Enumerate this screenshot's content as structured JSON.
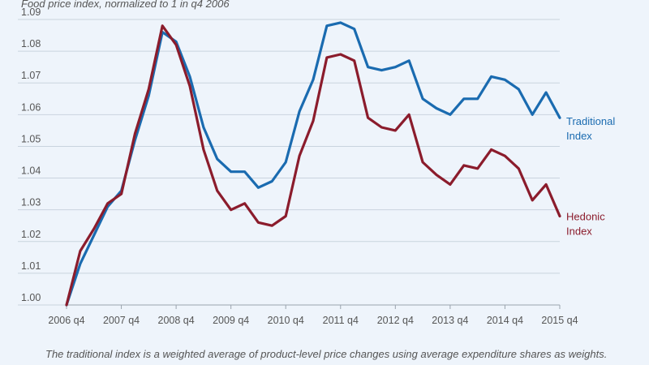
{
  "chart_data": {
    "type": "line",
    "title": "",
    "ylabel": "Food price index, normalized to 1 in q4 2006",
    "xlabel": "",
    "note": "The traditional index is a weighted average of product-level price changes using average expenditure shares as weights.",
    "ylim": [
      0.995,
      1.095
    ],
    "y_ticks": [
      "1.00",
      "1.01",
      "1.02",
      "1.03",
      "1.04",
      "1.05",
      "1.06",
      "1.07",
      "1.08",
      "1.09"
    ],
    "y_tick_values": [
      1.0,
      1.01,
      1.02,
      1.03,
      1.04,
      1.05,
      1.06,
      1.07,
      1.08,
      1.09
    ],
    "x_tick_labels": [
      "2006 q4",
      "2007 q4",
      "2008 q4",
      "2009 q4",
      "2010 q4",
      "2011 q4",
      "2012 q4",
      "2013 q4",
      "2014 q4",
      "2015 q4"
    ],
    "x_tick_index": [
      0,
      4,
      8,
      12,
      16,
      20,
      24,
      28,
      32,
      36
    ],
    "grid": true,
    "legend": "inline-right",
    "series": [
      {
        "name": "Traditional Index",
        "label_lines": [
          "Traditional",
          "Index"
        ],
        "color": "#1a6bb0",
        "values": [
          1.0,
          1.013,
          1.022,
          1.031,
          1.036,
          1.052,
          1.066,
          1.086,
          1.083,
          1.072,
          1.056,
          1.046,
          1.042,
          1.042,
          1.037,
          1.039,
          1.045,
          1.061,
          1.071,
          1.088,
          1.089,
          1.087,
          1.075,
          1.074,
          1.075,
          1.077,
          1.065,
          1.062,
          1.06,
          1.065,
          1.065,
          1.072,
          1.071,
          1.068,
          1.06,
          1.067,
          1.059
        ]
      },
      {
        "name": "Hedonic Index",
        "label_lines": [
          "Hedonic",
          "Index"
        ],
        "color": "#8b1c2c",
        "values": [
          1.0,
          1.017,
          1.024,
          1.032,
          1.035,
          1.054,
          1.068,
          1.088,
          1.082,
          1.069,
          1.049,
          1.036,
          1.03,
          1.032,
          1.026,
          1.025,
          1.028,
          1.047,
          1.058,
          1.078,
          1.079,
          1.077,
          1.059,
          1.056,
          1.055,
          1.06,
          1.045,
          1.041,
          1.038,
          1.044,
          1.043,
          1.049,
          1.047,
          1.043,
          1.033,
          1.038,
          1.028
        ]
      }
    ]
  }
}
